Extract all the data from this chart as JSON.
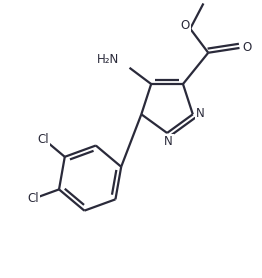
{
  "bg_color": "#ffffff",
  "line_color": "#2a2a3a",
  "line_width": 1.6,
  "figsize": [
    2.62,
    2.78
  ],
  "dpi": 100,
  "xlim": [
    -2.0,
    2.2
  ],
  "ylim": [
    -2.8,
    1.8
  ]
}
